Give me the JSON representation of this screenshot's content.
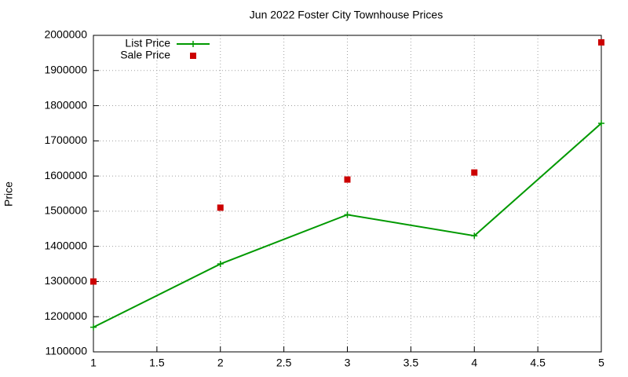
{
  "chart_data": {
    "type": "line",
    "title": "Jun 2022 Foster City Townhouse Prices",
    "y_label": "Price",
    "x": [
      1,
      2,
      3,
      4,
      5
    ],
    "series": [
      {
        "name": "List Price",
        "color": "#009900",
        "style": "linespoints",
        "values": [
          1170000,
          1350000,
          1490000,
          1430000,
          1750000
        ]
      },
      {
        "name": "Sale Price",
        "color": "#cc0000",
        "style": "points",
        "values": [
          1300000,
          1510000,
          1590000,
          1610000,
          1980000
        ]
      }
    ],
    "xlim": [
      1,
      5
    ],
    "xticks": [
      1,
      1.5,
      2,
      2.5,
      3,
      3.5,
      4,
      4.5,
      5
    ],
    "ylim": [
      1100000,
      2000000
    ],
    "yticks": [
      1100000,
      1200000,
      1300000,
      1400000,
      1500000,
      1600000,
      1700000,
      1800000,
      1900000,
      2000000
    ],
    "grid": true,
    "legend": "top-left"
  }
}
